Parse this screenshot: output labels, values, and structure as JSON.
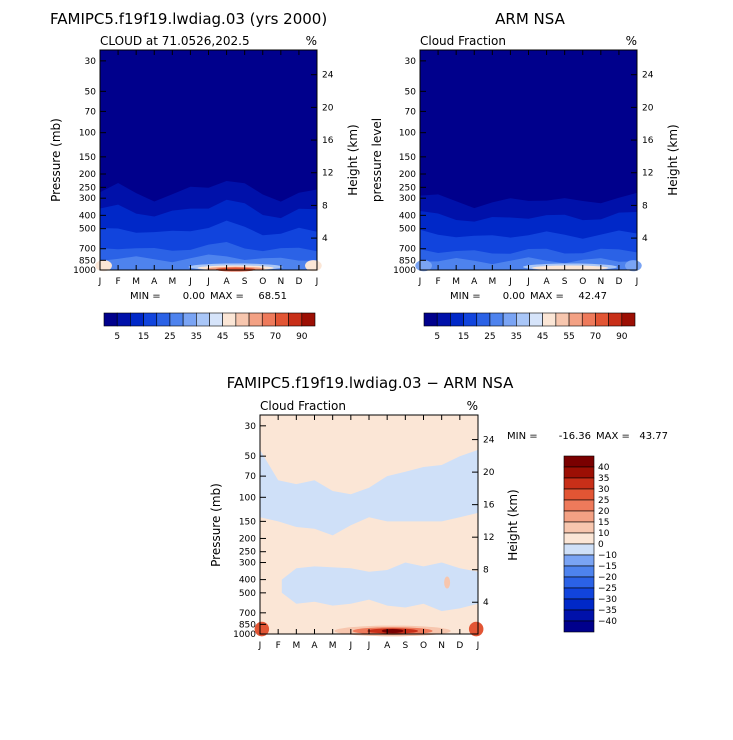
{
  "chart_data": [
    {
      "type": "heatmap",
      "title": "FAMIPC5.f19f19.lwdiag.03 (yrs 2000)",
      "subtitle": "CLOUD at 71.0526,202.5",
      "units": "%",
      "ylabel": "Pressure (mb)",
      "ylabel_right": "Height (km)",
      "x_ticks": [
        "J",
        "F",
        "M",
        "A",
        "M",
        "J",
        "J",
        "A",
        "S",
        "O",
        "N",
        "D",
        "J"
      ],
      "y_ticks": [
        "30",
        "50",
        "70",
        "100",
        "150",
        "200",
        "250",
        "300",
        "400",
        "500",
        "700",
        "850",
        "1000"
      ],
      "y_ticks_right": [
        "24",
        "20",
        "16",
        "12",
        "8",
        "4"
      ],
      "min_label": "MIN =",
      "min_value": "0.00",
      "max_label": "MAX =",
      "max_value": "68.51",
      "colorbar_levels": [
        5,
        10,
        15,
        20,
        25,
        30,
        35,
        40,
        45,
        50,
        55,
        60,
        70,
        80,
        90
      ],
      "colorbar_labels": [
        "5",
        "15",
        "25",
        "35",
        "45",
        "55",
        "70",
        "90"
      ],
      "cloud_top_km": [
        9.6,
        10.4,
        9.6,
        8.8,
        9.2,
        10.0,
        10.4,
        11.2,
        10.4,
        9.2,
        8.8,
        9.6,
        9.6
      ],
      "low_cloud_peak": {
        "month": "Aug",
        "value": 68.51
      }
    },
    {
      "type": "heatmap",
      "title": "ARM NSA",
      "subtitle": "Cloud Fraction",
      "units": "%",
      "ylabel": "pressure level",
      "ylabel_right": "Height (km)",
      "x_ticks": [
        "J",
        "F",
        "M",
        "A",
        "M",
        "J",
        "J",
        "A",
        "S",
        "O",
        "N",
        "D",
        "J"
      ],
      "y_ticks": [
        "30",
        "50",
        "70",
        "100",
        "150",
        "200",
        "250",
        "300",
        "400",
        "500",
        "700",
        "850",
        "1000"
      ],
      "y_ticks_right": [
        "24",
        "20",
        "16",
        "12",
        "8",
        "4"
      ],
      "min_label": "MIN =",
      "min_value": "0.00",
      "max_label": "MAX =",
      "max_value": "42.47",
      "colorbar_levels": [
        5,
        10,
        15,
        20,
        25,
        30,
        35,
        40,
        45,
        50,
        55,
        60,
        70,
        80,
        90
      ],
      "colorbar_labels": [
        "5",
        "15",
        "25",
        "35",
        "45",
        "55",
        "70",
        "90"
      ],
      "cloud_top_km": [
        9.2,
        9.0,
        8.6,
        8.0,
        8.2,
        8.6,
        8.8,
        8.8,
        8.6,
        8.4,
        8.6,
        9.0,
        9.2
      ],
      "low_cloud_peak": {
        "month": "Sep",
        "value": 42.47
      }
    },
    {
      "type": "heatmap",
      "title": "FAMIPC5.f19f19.lwdiag.03 − ARM NSA",
      "subtitle": "Cloud Fraction",
      "units": "%",
      "ylabel": "Pressure (mb)",
      "ylabel_right": "Height (km)",
      "x_ticks": [
        "J",
        "F",
        "M",
        "A",
        "M",
        "J",
        "J",
        "A",
        "S",
        "O",
        "N",
        "D",
        "J"
      ],
      "y_ticks": [
        "30",
        "50",
        "70",
        "100",
        "150",
        "200",
        "250",
        "300",
        "400",
        "500",
        "700",
        "850",
        "1000"
      ],
      "y_ticks_right": [
        "24",
        "20",
        "16",
        "12",
        "8",
        "4"
      ],
      "min_label": "MIN =",
      "min_value": "-16.36",
      "max_label": "MAX =",
      "max_value": "43.77",
      "colorbar_levels": [
        -40,
        -35,
        -30,
        -25,
        -20,
        -15,
        -10,
        0,
        10,
        15,
        20,
        25,
        30,
        35,
        40
      ],
      "colorbar_labels": [
        "40",
        "35",
        "30",
        "25",
        "20",
        "15",
        "10",
        "0",
        "−10",
        "−15",
        "−20",
        "−25",
        "−30",
        "−35",
        "−40"
      ]
    }
  ],
  "colors": {
    "seq_blue_red": [
      "#00008c",
      "#0011aa",
      "#0028c8",
      "#1144dd",
      "#2b62e6",
      "#4e83ee",
      "#7aa4f4",
      "#a9c6f7",
      "#d6e4fa",
      "#fbe6d6",
      "#f7c6ae",
      "#f3a184",
      "#ee7a5b",
      "#e25534",
      "#c82f18",
      "#9c0f04"
    ],
    "diverging": [
      "#00008c",
      "#0011aa",
      "#0028c8",
      "#1144dd",
      "#2b62e6",
      "#4e83ee",
      "#7aa4f4",
      "#cfe0f8",
      "#fbe6d6",
      "#f7c6ae",
      "#f3a184",
      "#ee7a5b",
      "#e25534",
      "#c82f18",
      "#9c0f04",
      "#7a0000"
    ]
  }
}
